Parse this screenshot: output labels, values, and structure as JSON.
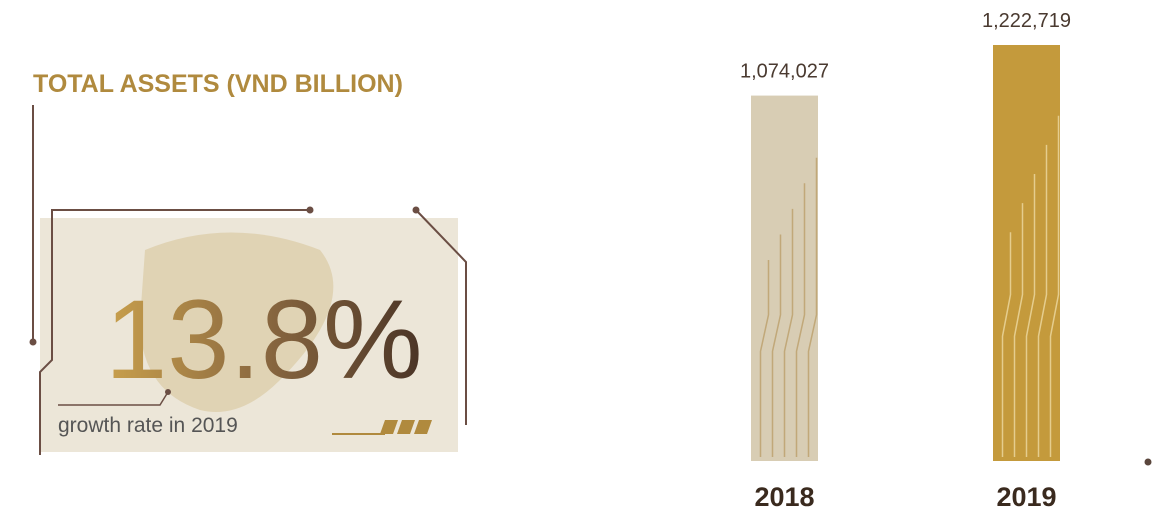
{
  "chart_data": {
    "type": "bar",
    "title": "TOTAL ASSETS (VND BILLION)",
    "highlight": "13.8%",
    "highlight_caption": "growth rate in 2019",
    "categories": [
      "2018",
      "2019"
    ],
    "values": [
      1074027,
      1222719
    ],
    "value_labels": [
      "1,074,027",
      "1,222,719"
    ],
    "colors": [
      "#d8cdb4",
      "#c49a3c"
    ]
  }
}
